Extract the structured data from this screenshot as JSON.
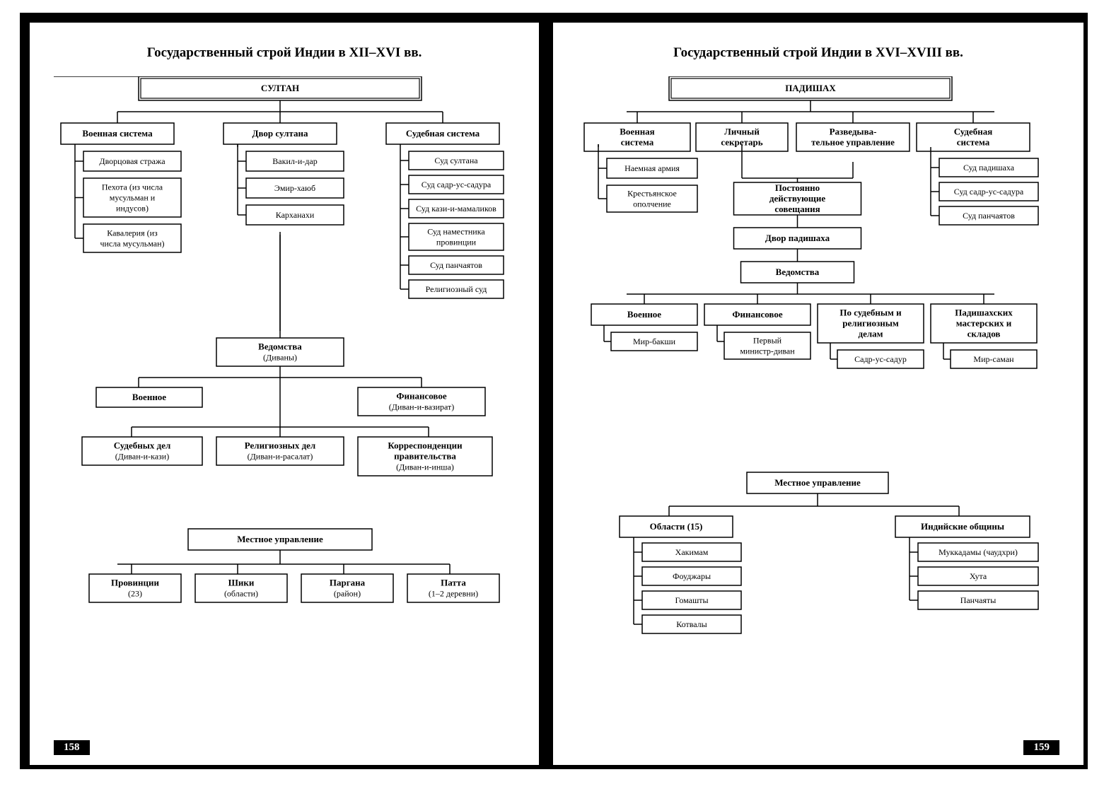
{
  "colors": {
    "stroke": "#000000",
    "bg": "#ffffff",
    "text": "#000000"
  },
  "typography": {
    "title_fontsize": 19,
    "box_bold_fontsize": 13,
    "box_fontsize": 12,
    "page_num_fontsize": 15
  },
  "left": {
    "title": "Государственный строй Индии в XII–XVI вв.",
    "page_num": "158",
    "root": "СУЛТАН",
    "row1": [
      "Военная система",
      "Двор султана",
      "Судебная система"
    ],
    "military": [
      "Дворцовая стража",
      "Пехота (из числа мусульман и индусов)",
      "Кавалерия (из числа мусульман)"
    ],
    "court": [
      "Вакил-и-дар",
      "Эмир-хаюб",
      "Карханахи"
    ],
    "judicial": [
      "Суд султана",
      "Суд садр-ус-садура",
      "Суд кази-и-мамаликов",
      "Суд наместника провинции",
      "Суд панчаятов",
      "Религиозный суд"
    ],
    "vedomstva": {
      "title": "Ведомства",
      "sub": "(Диваны)"
    },
    "ved_row_a": [
      {
        "t": "Военное",
        "s": ""
      },
      {
        "t": "Финансовое",
        "s": "(Диван-и-вазират)"
      }
    ],
    "ved_row_b": [
      {
        "t": "Судебных дел",
        "s": "(Диван-и-кази)"
      },
      {
        "t": "Религиозных дел",
        "s": "(Диван-и-расалат)"
      },
      {
        "t": "Корреспонденции правительства",
        "s": "(Диван-и-инша)"
      }
    ],
    "local_title": "Местное управление",
    "local_items": [
      {
        "t": "Провинции",
        "s": "(23)"
      },
      {
        "t": "Шики",
        "s": "(области)"
      },
      {
        "t": "Паргана",
        "s": "(район)"
      },
      {
        "t": "Патта",
        "s": "(1–2 деревни)"
      }
    ]
  },
  "right": {
    "title": "Государственный строй Индии в XVI–XVIII вв.",
    "page_num": "159",
    "root": "ПАДИШАХ",
    "row1": [
      "Военная система",
      "Личный секретарь",
      "Разведыва-\nтельное управление",
      "Судебная система"
    ],
    "military": [
      "Наемная армия",
      "Крестьянское ополчение"
    ],
    "judicial": [
      "Суд падишаха",
      "Суд садр-ус-садура",
      "Суд панчаятов"
    ],
    "mid": [
      "Постоянно действующие совещания",
      "Двор падишаха",
      "Ведомства"
    ],
    "ved": [
      {
        "t": "Военное",
        "c": "Мир-бакши"
      },
      {
        "t": "Финансовое",
        "c": "Первый министр-диван"
      },
      {
        "t": "По судебным и религиозным делам",
        "c": "Садр-ус-садур"
      },
      {
        "t": "Падишахских мастерских и складов",
        "c": "Мир-саман"
      }
    ],
    "local_title": "Местное управление",
    "local_left": {
      "title": "Области (15)",
      "items": [
        "Хакимам",
        "Фоуджары",
        "Гомашты",
        "Котвалы"
      ]
    },
    "local_right": {
      "title": "Индийские общины",
      "items": [
        "Муккадамы (чаудхри)",
        "Хута",
        "Панчаяты"
      ]
    }
  }
}
